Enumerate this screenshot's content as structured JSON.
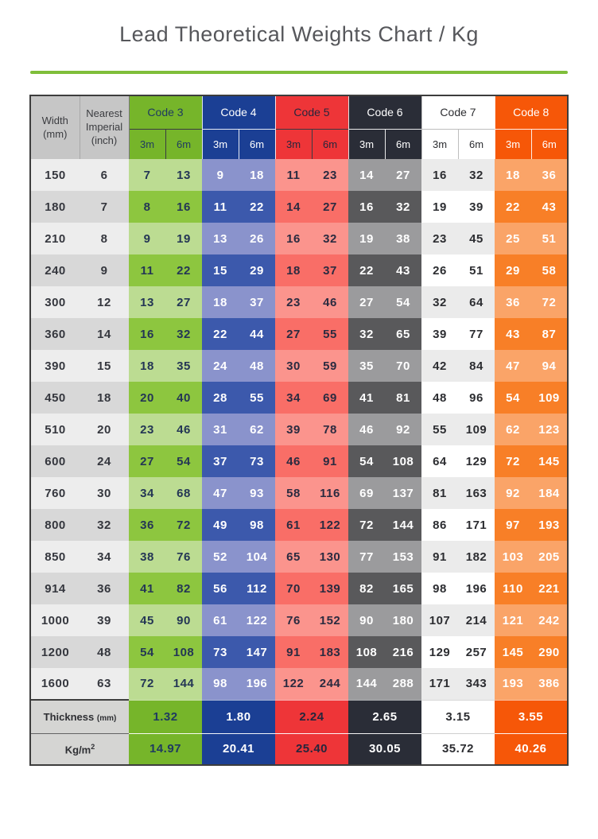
{
  "title": "Lead Theoretical Weights Chart / Kg",
  "accent_color": "#7FBE3A",
  "chart_data": {
    "type": "table",
    "title": "Lead Theoretical Weights Chart / Kg",
    "row_header": {
      "line1": "Width",
      "line2": "(mm)"
    },
    "imperial_header": {
      "line1": "Nearest",
      "line2": "Imperial",
      "line3": "(inch)"
    },
    "length_labels": {
      "l3": "3m",
      "l6": "6m"
    },
    "codes": [
      {
        "label": "Code 3",
        "color": "#76B52A",
        "thickness_mm": "1.32",
        "kg_per_m2": "14.97"
      },
      {
        "label": "Code 4",
        "color": "#1B3F94",
        "thickness_mm": "1.80",
        "kg_per_m2": "20.41"
      },
      {
        "label": "Code 5",
        "color": "#EE3538",
        "thickness_mm": "2.24",
        "kg_per_m2": "25.40"
      },
      {
        "label": "Code 6",
        "color": "#2A2D37",
        "thickness_mm": "2.65",
        "kg_per_m2": "30.05"
      },
      {
        "label": "Code 7",
        "color": "#FFFFFF",
        "thickness_mm": "3.15",
        "kg_per_m2": "35.72"
      },
      {
        "label": "Code 8",
        "color": "#F65708",
        "thickness_mm": "3.55",
        "kg_per_m2": "40.26"
      }
    ],
    "footer": {
      "thickness_label": "Thickness",
      "thickness_unit": "(mm)",
      "kg_label": "Kg/m",
      "kg_sup": "2"
    },
    "rows": [
      {
        "width_mm": "150",
        "imperial_inch": "6",
        "weights": [
          [
            7,
            13
          ],
          [
            9,
            18
          ],
          [
            11,
            23
          ],
          [
            14,
            27
          ],
          [
            16,
            32
          ],
          [
            18,
            36
          ]
        ]
      },
      {
        "width_mm": "180",
        "imperial_inch": "7",
        "weights": [
          [
            8,
            16
          ],
          [
            11,
            22
          ],
          [
            14,
            27
          ],
          [
            16,
            32
          ],
          [
            19,
            39
          ],
          [
            22,
            43
          ]
        ]
      },
      {
        "width_mm": "210",
        "imperial_inch": "8",
        "weights": [
          [
            9,
            19
          ],
          [
            13,
            26
          ],
          [
            16,
            32
          ],
          [
            19,
            38
          ],
          [
            23,
            45
          ],
          [
            25,
            51
          ]
        ]
      },
      {
        "width_mm": "240",
        "imperial_inch": "9",
        "weights": [
          [
            11,
            22
          ],
          [
            15,
            29
          ],
          [
            18,
            37
          ],
          [
            22,
            43
          ],
          [
            26,
            51
          ],
          [
            29,
            58
          ]
        ]
      },
      {
        "width_mm": "300",
        "imperial_inch": "12",
        "weights": [
          [
            13,
            27
          ],
          [
            18,
            37
          ],
          [
            23,
            46
          ],
          [
            27,
            54
          ],
          [
            32,
            64
          ],
          [
            36,
            72
          ]
        ]
      },
      {
        "width_mm": "360",
        "imperial_inch": "14",
        "weights": [
          [
            16,
            32
          ],
          [
            22,
            44
          ],
          [
            27,
            55
          ],
          [
            32,
            65
          ],
          [
            39,
            77
          ],
          [
            43,
            87
          ]
        ]
      },
      {
        "width_mm": "390",
        "imperial_inch": "15",
        "weights": [
          [
            18,
            35
          ],
          [
            24,
            48
          ],
          [
            30,
            59
          ],
          [
            35,
            70
          ],
          [
            42,
            84
          ],
          [
            47,
            94
          ]
        ]
      },
      {
        "width_mm": "450",
        "imperial_inch": "18",
        "weights": [
          [
            20,
            40
          ],
          [
            28,
            55
          ],
          [
            34,
            69
          ],
          [
            41,
            81
          ],
          [
            48,
            96
          ],
          [
            54,
            109
          ]
        ]
      },
      {
        "width_mm": "510",
        "imperial_inch": "20",
        "weights": [
          [
            23,
            46
          ],
          [
            31,
            62
          ],
          [
            39,
            78
          ],
          [
            46,
            92
          ],
          [
            55,
            109
          ],
          [
            62,
            123
          ]
        ]
      },
      {
        "width_mm": "600",
        "imperial_inch": "24",
        "weights": [
          [
            27,
            54
          ],
          [
            37,
            73
          ],
          [
            46,
            91
          ],
          [
            54,
            108
          ],
          [
            64,
            129
          ],
          [
            72,
            145
          ]
        ]
      },
      {
        "width_mm": "760",
        "imperial_inch": "30",
        "weights": [
          [
            34,
            68
          ],
          [
            47,
            93
          ],
          [
            58,
            116
          ],
          [
            69,
            137
          ],
          [
            81,
            163
          ],
          [
            92,
            184
          ]
        ]
      },
      {
        "width_mm": "800",
        "imperial_inch": "32",
        "weights": [
          [
            36,
            72
          ],
          [
            49,
            98
          ],
          [
            61,
            122
          ],
          [
            72,
            144
          ],
          [
            86,
            171
          ],
          [
            97,
            193
          ]
        ]
      },
      {
        "width_mm": "850",
        "imperial_inch": "34",
        "weights": [
          [
            38,
            76
          ],
          [
            52,
            104
          ],
          [
            65,
            130
          ],
          [
            77,
            153
          ],
          [
            91,
            182
          ],
          [
            103,
            205
          ]
        ]
      },
      {
        "width_mm": "914",
        "imperial_inch": "36",
        "weights": [
          [
            41,
            82
          ],
          [
            56,
            112
          ],
          [
            70,
            139
          ],
          [
            82,
            165
          ],
          [
            98,
            196
          ],
          [
            110,
            221
          ]
        ]
      },
      {
        "width_mm": "1000",
        "imperial_inch": "39",
        "weights": [
          [
            45,
            90
          ],
          [
            61,
            122
          ],
          [
            76,
            152
          ],
          [
            90,
            180
          ],
          [
            107,
            214
          ],
          [
            121,
            242
          ]
        ]
      },
      {
        "width_mm": "1200",
        "imperial_inch": "48",
        "weights": [
          [
            54,
            108
          ],
          [
            73,
            147
          ],
          [
            91,
            183
          ],
          [
            108,
            216
          ],
          [
            129,
            257
          ],
          [
            145,
            290
          ]
        ]
      },
      {
        "width_mm": "1600",
        "imperial_inch": "63",
        "weights": [
          [
            72,
            144
          ],
          [
            98,
            196
          ],
          [
            122,
            244
          ],
          [
            144,
            288
          ],
          [
            171,
            343
          ],
          [
            193,
            386
          ]
        ]
      }
    ]
  }
}
